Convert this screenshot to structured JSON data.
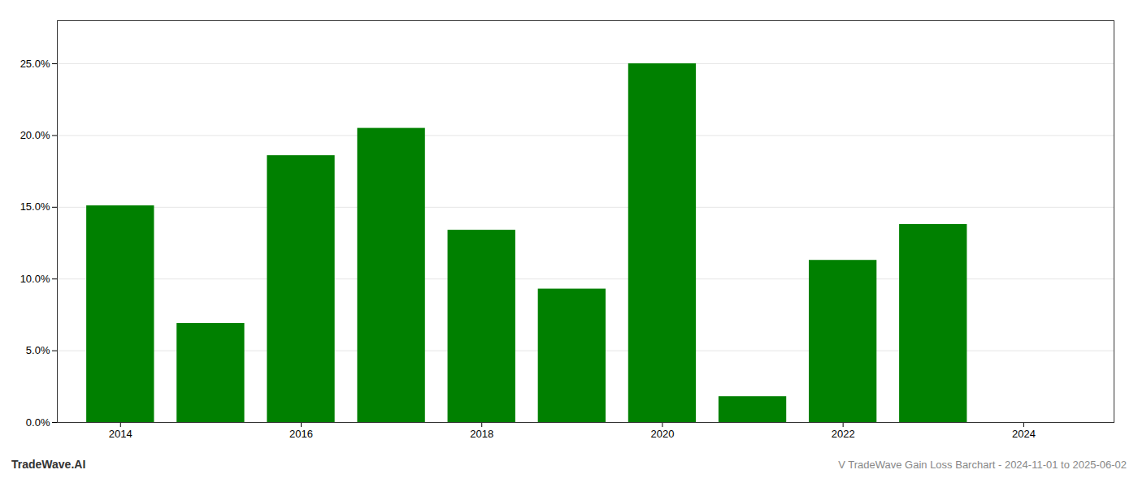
{
  "chart_data": {
    "type": "bar",
    "title": "V TradeWave Gain Loss Barchart - 2024-11-01 to 2025-06-02",
    "annotations": [
      "TradeWave.AI"
    ],
    "x": [
      2014,
      2015,
      2016,
      2017,
      2018,
      2019,
      2020,
      2021,
      2022,
      2023,
      2024
    ],
    "values": [
      0.151,
      0.069,
      0.186,
      0.205,
      0.134,
      0.093,
      0.25,
      0.018,
      0.113,
      0.138,
      null
    ],
    "color": "#008000",
    "xlim": [
      2013.3,
      2025.0
    ],
    "xticks": [
      2014,
      2016,
      2018,
      2020,
      2022,
      2024
    ],
    "ylim": [
      0,
      0.28
    ],
    "yticks": [
      {
        "value": 0.0,
        "label": "0.0%"
      },
      {
        "value": 0.05,
        "label": "5.0%"
      },
      {
        "value": 0.1,
        "label": "10.0%"
      },
      {
        "value": 0.15,
        "label": "15.0%"
      },
      {
        "value": 0.2,
        "label": "20.0%"
      },
      {
        "value": 0.25,
        "label": "25.0%"
      }
    ],
    "grid": true
  }
}
